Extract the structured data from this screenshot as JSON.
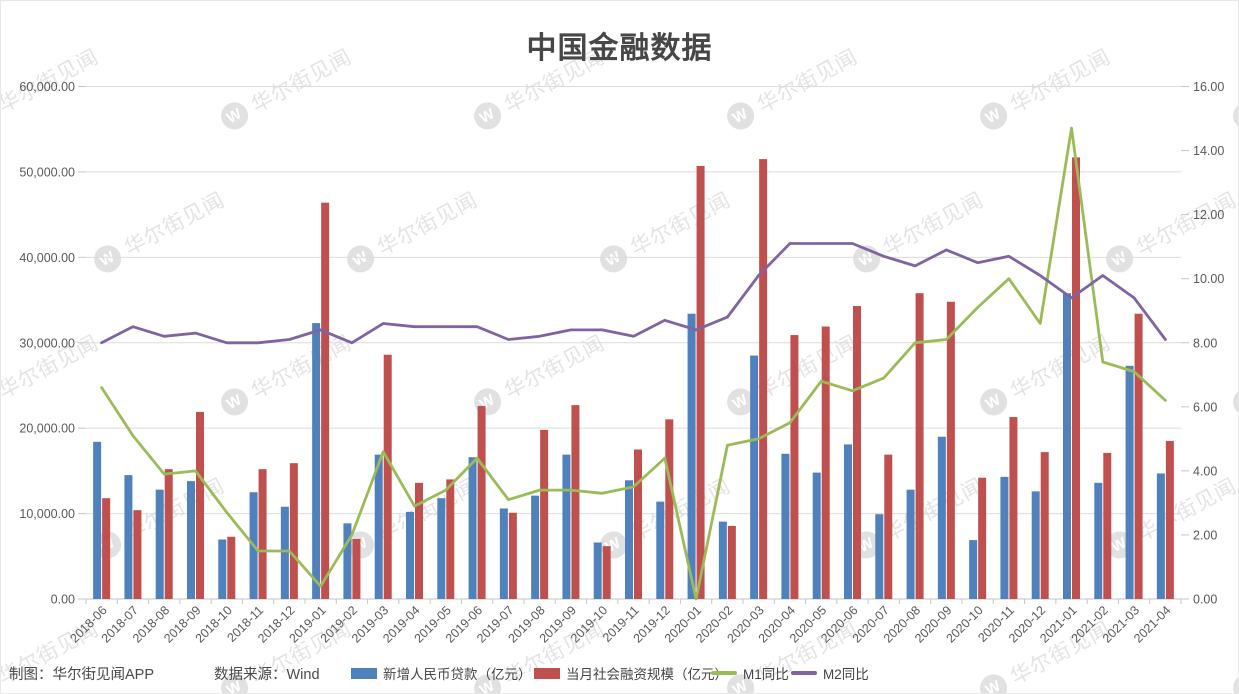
{
  "page": {
    "title": "中国金融数据"
  },
  "watermark": {
    "logo_letter": "W",
    "text": "华尔街见闻"
  },
  "footer": {
    "maker": "制图：华尔街见闻APP",
    "source": "数据来源：Wind"
  },
  "colors": {
    "loans_bar": "#4F81BD",
    "tsf_bar": "#C0504D",
    "m1_line": "#9BBB59",
    "m2_line": "#8064A2",
    "gridline": "#dcdcdc",
    "axis_tick": "#c6c6c6",
    "axis_text": "#595959",
    "title_text": "#474747"
  },
  "chart_data": {
    "type": "combo-bar-line",
    "title": "中国金融数据",
    "grid": true,
    "legend_position": "bottom",
    "categories": [
      "2018-06",
      "2018-07",
      "2018-08",
      "2018-09",
      "2018-10",
      "2018-11",
      "2018-12",
      "2019-01",
      "2019-02",
      "2019-03",
      "2019-04",
      "2019-05",
      "2019-06",
      "2019-07",
      "2019-08",
      "2019-09",
      "2019-10",
      "2019-11",
      "2019-12",
      "2020-01",
      "2020-02",
      "2020-03",
      "2020-04",
      "2020-05",
      "2020-06",
      "2020-07",
      "2020-08",
      "2020-09",
      "2020-10",
      "2020-11",
      "2020-12",
      "2021-01",
      "2021-02",
      "2021-03",
      "2021-04"
    ],
    "series": [
      {
        "name": "新增人民币贷款（亿元）",
        "type": "bar",
        "axis": "left",
        "color": "#4F81BD",
        "values": [
          18400,
          14500,
          12800,
          13800,
          6970,
          12500,
          10800,
          32300,
          8858,
          16900,
          10200,
          11800,
          16600,
          10600,
          12100,
          16900,
          6613,
          13900,
          11400,
          33400,
          9057,
          28500,
          17000,
          14800,
          18100,
          9927,
          12800,
          19000,
          6898,
          14300,
          12600,
          35800,
          13600,
          27300,
          14700
        ]
      },
      {
        "name": "当月社会融资规模（亿元）",
        "type": "bar",
        "axis": "left",
        "color": "#C0504D",
        "values": [
          11800,
          10400,
          15200,
          21900,
          7288,
          15200,
          15900,
          46400,
          7030,
          28600,
          13600,
          14000,
          22600,
          10100,
          19800,
          22700,
          6189,
          17500,
          21030,
          50700,
          8554,
          51500,
          30900,
          31900,
          34300,
          16900,
          35800,
          34800,
          14200,
          21300,
          17200,
          51700,
          17100,
          33400,
          18500
        ]
      },
      {
        "name": "M1同比",
        "type": "line",
        "axis": "right",
        "color": "#9BBB59",
        "values": [
          6.6,
          5.1,
          3.9,
          4.0,
          2.7,
          1.5,
          1.5,
          0.4,
          2.0,
          4.6,
          2.9,
          3.4,
          4.4,
          3.1,
          3.4,
          3.4,
          3.3,
          3.5,
          4.4,
          0.0,
          4.8,
          5.0,
          5.5,
          6.8,
          6.5,
          6.9,
          8.0,
          8.1,
          9.1,
          10.0,
          8.6,
          14.7,
          7.4,
          7.1,
          6.2
        ]
      },
      {
        "name": "M2同比",
        "type": "line",
        "axis": "right",
        "color": "#8064A2",
        "values": [
          8.0,
          8.5,
          8.2,
          8.3,
          8.0,
          8.0,
          8.1,
          8.4,
          8.0,
          8.6,
          8.5,
          8.5,
          8.5,
          8.1,
          8.2,
          8.4,
          8.4,
          8.2,
          8.7,
          8.4,
          8.8,
          10.1,
          11.1,
          11.1,
          11.1,
          10.7,
          10.4,
          10.9,
          10.5,
          10.7,
          10.1,
          9.4,
          10.1,
          9.4,
          8.1
        ]
      }
    ],
    "left_axis": {
      "min": 0,
      "max": 60000,
      "step": 10000,
      "tick_labels": [
        "0.00",
        "10,000.00",
        "20,000.00",
        "30,000.00",
        "40,000.00",
        "50,000.00",
        "60,000.00"
      ]
    },
    "right_axis": {
      "min": 0,
      "max": 16,
      "step": 2,
      "tick_labels": [
        "0.00",
        "2.00",
        "4.00",
        "6.00",
        "8.00",
        "10.00",
        "12.00",
        "14.00",
        "16.00"
      ]
    }
  }
}
